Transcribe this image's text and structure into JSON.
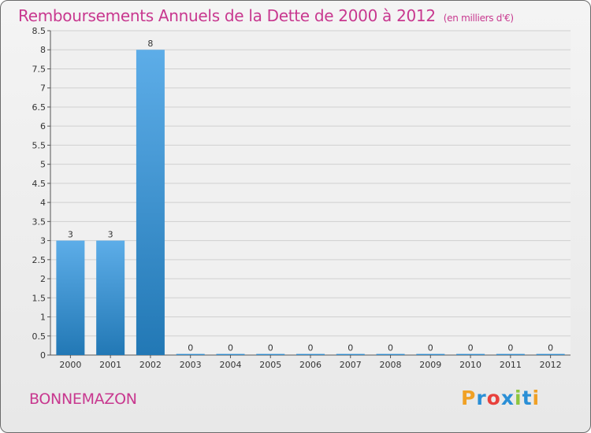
{
  "header": {
    "title": "Remboursements Annuels de la Dette de 2000 à 2012",
    "unit": "(en milliers d'€)"
  },
  "footer": {
    "commune": "BONNEMAZON",
    "logo_letters": [
      {
        "ch": "P",
        "color": "#f0a126"
      },
      {
        "ch": "r",
        "color": "#2a8fd6"
      },
      {
        "ch": "o",
        "color": "#e8413c"
      },
      {
        "ch": "x",
        "color": "#2a8fd6"
      },
      {
        "ch": "i",
        "color": "#8ec63f"
      },
      {
        "ch": "t",
        "color": "#2a8fd6"
      },
      {
        "ch": "i",
        "color": "#f0a126"
      }
    ]
  },
  "colors": {
    "bar_top": "#5dade8",
    "bar_bottom": "#2278b5",
    "grid": "#d0d0d0",
    "axis": "#555555",
    "title": "#c8388f"
  },
  "chart_data": {
    "type": "bar",
    "categories": [
      "2000",
      "2001",
      "2002",
      "2003",
      "2004",
      "2005",
      "2006",
      "2007",
      "2008",
      "2009",
      "2010",
      "2011",
      "2012"
    ],
    "values": [
      3,
      3,
      8,
      0,
      0,
      0,
      0,
      0,
      0,
      0,
      0,
      0,
      0
    ],
    "data_labels": [
      "3",
      "3",
      "8",
      "0",
      "0",
      "0",
      "0",
      "0",
      "0",
      "0",
      "0",
      "0",
      "0"
    ],
    "title": "Remboursements Annuels de la Dette de 2000 à 2012",
    "unit": "(en milliers d'€)",
    "xlabel": "",
    "ylabel": "",
    "ylim": [
      0,
      8.5
    ],
    "y_ticks": [
      "0",
      "0.5",
      "1",
      "1.5",
      "2",
      "2.5",
      "3",
      "3.5",
      "4",
      "4.5",
      "5",
      "5.5",
      "6",
      "6.5",
      "7",
      "7.5",
      "8",
      "8.5"
    ],
    "grid": true,
    "legend": "none"
  }
}
